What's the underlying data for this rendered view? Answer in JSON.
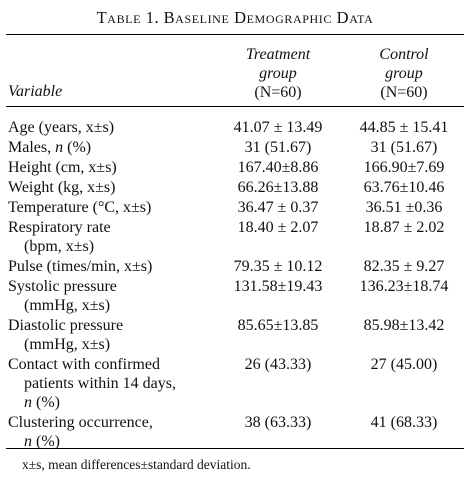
{
  "table": {
    "caption_prefix": "Table 1.",
    "caption_title": "Baseline Demographic Data",
    "col_variable": "Variable",
    "treatment": {
      "line1": "Treatment",
      "line2": "group",
      "n": "(N=60)"
    },
    "control": {
      "line1": "Control",
      "line2": "group",
      "n": "(N=60)"
    },
    "rows": [
      {
        "label": [
          "Age (years, x±s)"
        ],
        "treatment": "41.07 ± 13.49",
        "control": "44.85 ± 15.41"
      },
      {
        "label": [
          "Males, n (%)"
        ],
        "treatment": "31 (51.67)",
        "control": "31 (51.67)"
      },
      {
        "label": [
          "Height (cm, x±s)"
        ],
        "treatment": "167.40±8.86",
        "control": "166.90±7.69"
      },
      {
        "label": [
          "Weight (kg, x±s)"
        ],
        "treatment": "66.26±13.88",
        "control": "63.76±10.46"
      },
      {
        "label": [
          "Temperature (°C, x±s)"
        ],
        "treatment": "36.47 ± 0.37",
        "control": "36.51 ±0.36"
      },
      {
        "label": [
          "Respiratory rate",
          "(bpm, x±s)"
        ],
        "treatment": "18.40 ± 2.07",
        "control": "18.87 ± 2.02"
      },
      {
        "label": [
          "Pulse (times/min, x±s)"
        ],
        "treatment": "79.35 ± 10.12",
        "control": "82.35 ± 9.27"
      },
      {
        "label": [
          "Systolic pressure",
          "(mmHg, x±s)"
        ],
        "treatment": "131.58±19.43",
        "control": "136.23±18.74"
      },
      {
        "label": [
          "Diastolic pressure",
          "(mmHg, x±s)"
        ],
        "treatment": "85.65±13.85",
        "control": "85.98±13.42"
      },
      {
        "label": [
          "Contact with confirmed",
          "patients within 14 days,",
          "n (%)"
        ],
        "treatment": "26 (43.33)",
        "control": "27 (45.00)"
      },
      {
        "label": [
          "Clustering occurrence,",
          "n (%)"
        ],
        "treatment": "38 (63.33)",
        "control": "41 (68.33)"
      }
    ],
    "footnote": "x±s, mean differences±standard deviation."
  }
}
